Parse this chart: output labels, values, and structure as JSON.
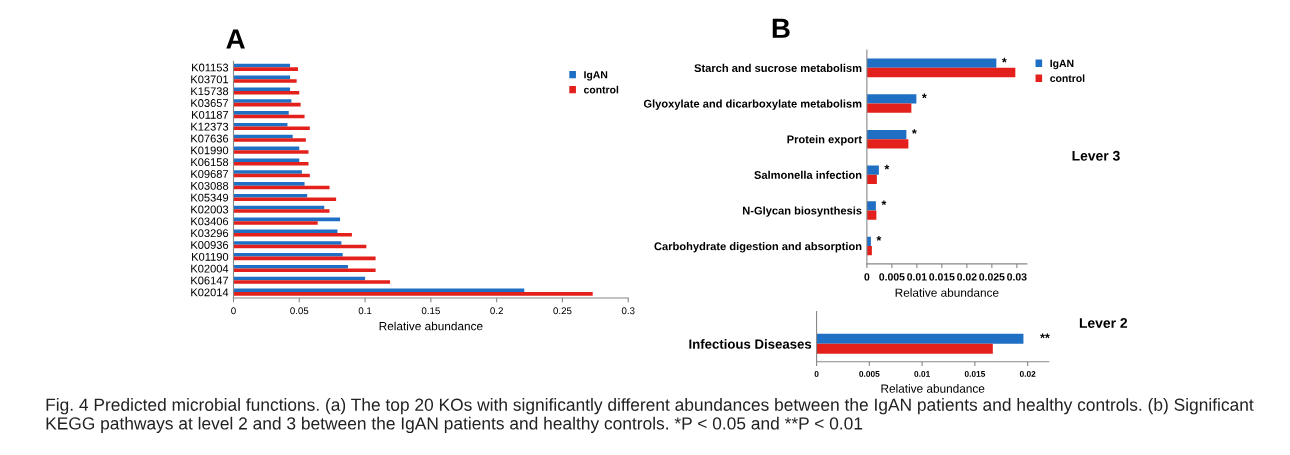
{
  "chart_data": [
    {
      "type": "bar",
      "orientation": "horizontal",
      "title": "A",
      "xlabel": "Relative abundance",
      "categories": [
        "K01153",
        "K03701",
        "K15738",
        "K03657",
        "K01187",
        "K12373",
        "K07636",
        "K01990",
        "K06158",
        "K09687",
        "K03088",
        "K05349",
        "K02003",
        "K03406",
        "K03296",
        "K00936",
        "K01190",
        "K02004",
        "K06147",
        "K02014"
      ],
      "series": [
        {
          "name": "IgAN",
          "color": "#1f6fc5",
          "values": [
            0.043,
            0.043,
            0.043,
            0.044,
            0.042,
            0.041,
            0.045,
            0.05,
            0.05,
            0.052,
            0.054,
            0.056,
            0.069,
            0.081,
            0.079,
            0.082,
            0.083,
            0.087,
            0.1,
            0.221
          ]
        },
        {
          "name": "control",
          "color": "#e3201b",
          "values": [
            0.049,
            0.048,
            0.05,
            0.051,
            0.054,
            0.058,
            0.055,
            0.057,
            0.057,
            0.058,
            0.073,
            0.078,
            0.073,
            0.064,
            0.09,
            0.101,
            0.108,
            0.108,
            0.119,
            0.273
          ]
        }
      ],
      "xlim": [
        0,
        0.3
      ],
      "xticks": [
        0,
        0.05,
        0.1,
        0.15,
        0.2,
        0.25,
        0.3
      ],
      "grid": false,
      "legend": "top right",
      "annotations": [
        "Fig. 4 Predicted microbial functions. (a) The top 20 KOs with significantly different abundances between the IgAN patients and healthy controls. (b) Significant KEGG pathways at level 2 and 3 between the IgAN patients and healthy controls. *P < 0.05 and **P < 0.01"
      ]
    },
    {
      "type": "bar",
      "orientation": "horizontal",
      "title": "B",
      "xlabel": "Relative abundance",
      "categories": [
        "Starch and sucrose metabolism",
        "Glyoxylate and dicarboxylate metabolism",
        "Protein export",
        "Salmonella infection",
        "N-Glycan biosynthesis",
        "Carbohydrate digestion and absorption"
      ],
      "series": [
        {
          "name": "IgAN",
          "color": "#1f6fc5",
          "values": [
            0.0259,
            0.0099,
            0.0079,
            0.0024,
            0.0018,
            0.0008
          ]
        },
        {
          "name": "control",
          "color": "#e3201b",
          "values": [
            0.0297,
            0.0089,
            0.0083,
            0.002,
            0.0019,
            0.001
          ]
        }
      ],
      "xlim": [
        0,
        0.032
      ],
      "xticks": [
        0,
        0.005,
        0.01,
        0.015,
        0.02,
        0.025,
        0.03
      ],
      "grid": false,
      "legend": "top right",
      "annotations": [
        {
          "text": "*",
          "x": 0.0259,
          "y": "Starch and sucrose metabolism"
        },
        {
          "text": "*",
          "x": 0.0099,
          "y": "Glyoxylate and dicarboxylate metabolism"
        },
        {
          "text": "*",
          "x": 0.0079,
          "y": "Protein export"
        },
        {
          "text": "*",
          "x": 0.0024,
          "y": "Salmonella infection"
        },
        {
          "text": "*",
          "x": 0.0018,
          "y": "N-Glycan biosynthesis"
        },
        {
          "text": "*",
          "x": 0.0008,
          "y": "Carbohydrate digestion and absorption"
        },
        "Lever 3"
      ]
    },
    {
      "type": "bar",
      "orientation": "horizontal",
      "xlabel": "Relative abundance",
      "categories": [
        "Infectious Diseases"
      ],
      "series": [
        {
          "color": "#1f6fc5",
          "values": [
            0.0196
          ]
        },
        {
          "color": "#e3201b",
          "values": [
            0.0167
          ]
        }
      ],
      "xlim": [
        0,
        0.022
      ],
      "xticks": [
        0,
        0.005,
        0.01,
        0.015,
        0.02
      ],
      "grid": false,
      "annotations": [
        {
          "text": "**",
          "x": 0.0196,
          "y": "Infectious Diseases"
        },
        "Lever 2"
      ]
    }
  ]
}
